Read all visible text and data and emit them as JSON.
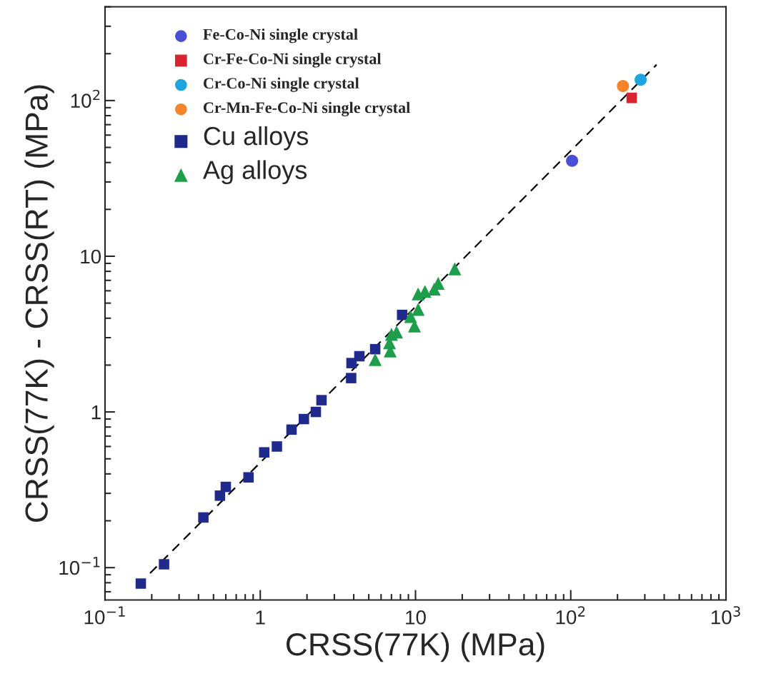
{
  "chart_data": {
    "type": "scatter",
    "xlabel": "CRSS(77K) (MPa)",
    "ylabel": "CRSS(77K) - CRSS(RT) (MPa)",
    "log": "xy",
    "xlim": [
      0.1,
      1000
    ],
    "ylim": [
      0.062,
      400
    ],
    "xticks": [
      {
        "value": 0.1,
        "label": "10$^{−1}$"
      },
      1,
      10,
      {
        "value": 100,
        "label": "10$^{2}$"
      },
      {
        "value": 1000,
        "label": "10$^{3}$"
      }
    ],
    "yticks": [
      {
        "value": 0.1,
        "label": "10$^{−1}$"
      },
      1,
      10,
      {
        "value": 100,
        "label": "10$^{2}$"
      }
    ],
    "grid": false,
    "legend": "top left",
    "series": [
      {
        "name": "Fe-Co-Ni single crystal",
        "color": "#4a4fd6",
        "marker": "circle",
        "x": [
          102
        ],
        "values": [
          41
        ]
      },
      {
        "name": "Cr-Fe-Co-Ni single crystal",
        "color": "#d9232e",
        "marker": "square",
        "x": [
          247
        ],
        "values": [
          104
        ]
      },
      {
        "name": "Cr-Co-Ni single crystal",
        "color": "#1ea5e0",
        "marker": "circle",
        "x": [
          282
        ],
        "values": [
          136
        ]
      },
      {
        "name": "Cr-Mn-Fe-Co-Ni single crystal",
        "color": "#f5842a",
        "marker": "circle",
        "x": [
          217
        ],
        "values": [
          124
        ]
      },
      {
        "name": "Cu alloys",
        "color": "#1f2a8c",
        "marker": "square",
        "x": [
          0.17,
          0.24,
          0.43,
          0.55,
          0.6,
          0.84,
          1.06,
          1.28,
          1.59,
          1.91,
          2.28,
          2.48,
          3.85,
          3.87,
          4.35,
          5.5,
          8.2
        ],
        "values": [
          0.079,
          0.105,
          0.21,
          0.29,
          0.33,
          0.38,
          0.55,
          0.6,
          0.77,
          0.9,
          1.0,
          1.19,
          1.65,
          2.06,
          2.28,
          2.53,
          4.2
        ]
      },
      {
        "name": "Ag alloys",
        "color": "#1e9e4a",
        "marker": "triangle",
        "x": [
          5.5,
          6.87,
          6.8,
          7.0,
          7.55,
          9.85,
          9.3,
          10.4,
          10.4,
          11.5,
          13.2,
          14.0,
          17.9
        ],
        "values": [
          2.17,
          2.46,
          2.78,
          3.15,
          3.26,
          3.56,
          4.1,
          4.56,
          5.73,
          5.94,
          6.15,
          6.7,
          8.3
        ]
      },
      {
        "type": "line",
        "color": "#000000",
        "line_style": "dashed",
        "marker": "none",
        "x": [
          0.195,
          357
        ],
        "values": [
          0.092,
          170
        ]
      }
    ]
  }
}
